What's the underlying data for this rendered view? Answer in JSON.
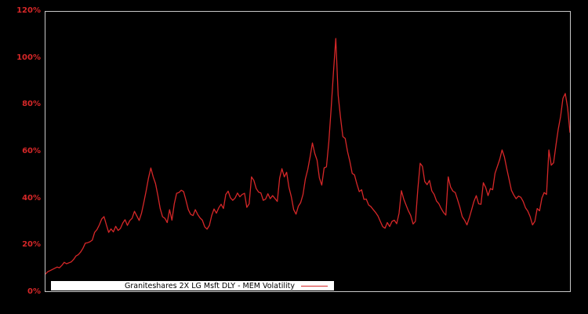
{
  "chart_data": {
    "type": "line",
    "title": "",
    "xlabel": "",
    "ylabel": "",
    "ylim": [
      0,
      120
    ],
    "ytick_values": [
      0,
      20,
      40,
      60,
      80,
      100,
      120
    ],
    "ytick_labels": [
      "0%",
      "20%",
      "40%",
      "60%",
      "80%",
      "100%",
      "120%"
    ],
    "xtick_labels": [],
    "grid": false,
    "legend_position": "lower-left-inside",
    "background_color": "#000000",
    "axes_edge_color": "#c8c8c8",
    "tick_label_color": "#d62728",
    "legend": {
      "label": "Graniteshares 2X LG Msft DLY - MEM Volatility",
      "background": "#ffffff",
      "text_color": "#000000"
    },
    "series": [
      {
        "name": "Graniteshares 2X LG Msft DLY - MEM Volatility",
        "color": "#d62728",
        "unit": "%",
        "values": [
          8.0,
          9.0,
          9.5,
          10.0,
          10.5,
          11.0,
          10.7,
          11.7,
          13.0,
          12.4,
          12.8,
          13.2,
          14.2,
          15.7,
          16.3,
          17.4,
          19.0,
          21.2,
          21.4,
          21.8,
          22.5,
          25.8,
          27.0,
          29.0,
          31.5,
          32.5,
          29.0,
          25.8,
          27.3,
          26.0,
          28.4,
          26.6,
          27.5,
          29.8,
          31.2,
          28.8,
          30.8,
          31.8,
          34.8,
          32.8,
          30.9,
          34.0,
          38.5,
          43.5,
          49.0,
          53.3,
          49.5,
          46.6,
          41.5,
          36.0,
          32.5,
          31.8,
          30.0,
          35.5,
          31.0,
          38.0,
          42.5,
          42.8,
          43.8,
          43.2,
          39.5,
          35.5,
          33.5,
          33.0,
          35.5,
          33.5,
          32.0,
          31.0,
          28.2,
          27.2,
          28.8,
          33.0,
          35.8,
          34.0,
          36.3,
          37.8,
          36.0,
          42.0,
          43.4,
          40.6,
          39.5,
          40.5,
          42.6,
          41.0,
          42.0,
          42.5,
          36.5,
          38.0,
          49.5,
          48.0,
          44.5,
          43.0,
          42.6,
          39.5,
          40.0,
          42.3,
          40.2,
          41.5,
          40.3,
          39.0,
          49.0,
          53.0,
          49.5,
          51.5,
          45.0,
          41.0,
          35.5,
          33.6,
          37.0,
          38.5,
          42.0,
          48.6,
          52.6,
          58.0,
          64.0,
          59.5,
          56.6,
          49.0,
          46.0,
          53.3,
          53.8,
          64.4,
          78.8,
          94.5,
          108.6,
          84.5,
          75.0,
          66.7,
          65.9,
          60.3,
          56.0,
          51.0,
          50.3,
          46.5,
          43.2,
          44.0,
          39.9,
          40.0,
          37.5,
          36.8,
          35.5,
          34.3,
          32.8,
          30.5,
          28.3,
          27.6,
          30.0,
          28.3,
          30.5,
          31.0,
          29.5,
          34.0,
          43.6,
          40.0,
          37.5,
          35.0,
          33.0,
          29.4,
          30.5,
          44.0,
          55.3,
          54.0,
          47.5,
          46.2,
          48.0,
          43.5,
          42.0,
          39.2,
          38.0,
          36.0,
          34.3,
          33.2,
          49.5,
          45.2,
          43.4,
          42.8,
          39.8,
          36.5,
          32.5,
          31.0,
          29.0,
          32.0,
          35.5,
          39.0,
          41.5,
          38.0,
          37.8,
          47.0,
          45.0,
          41.5,
          44.5,
          44.0,
          51.0,
          54.0,
          57.0,
          61.0,
          58.0,
          53.0,
          48.5,
          43.8,
          41.8,
          40.2,
          41.3,
          40.8,
          39.0,
          36.3,
          34.9,
          32.5,
          29.0,
          30.5,
          36.0,
          35.0,
          40.5,
          42.8,
          42.0,
          61.0,
          54.5,
          55.5,
          63.0,
          70.0,
          75.4,
          83.0,
          85.1,
          79.0,
          68.5
        ]
      }
    ]
  }
}
